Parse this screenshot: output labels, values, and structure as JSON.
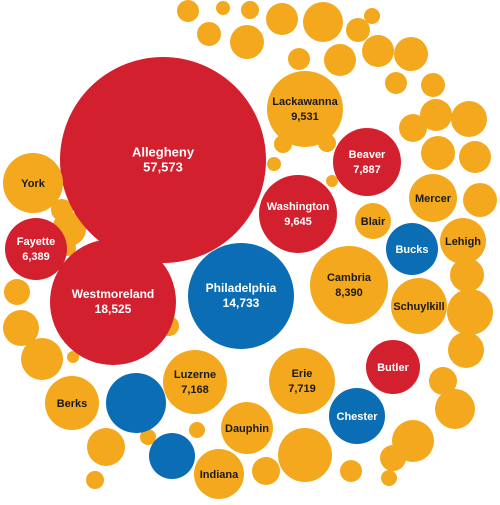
{
  "chart_data": {
    "type": "bubble",
    "title": "",
    "colors": {
      "red": "#d3202f",
      "blue": "#0b6db3",
      "orange": "#f4a81d"
    },
    "bubbles": [
      {
        "name": "Allegheny",
        "value": "57,573",
        "color": "red"
      },
      {
        "name": "Westmoreland",
        "value": "18,525",
        "color": "red"
      },
      {
        "name": "Philadelphia",
        "value": "14,733",
        "color": "blue"
      },
      {
        "name": "Washington",
        "value": "9,645",
        "color": "red"
      },
      {
        "name": "Lackawanna",
        "value": "9,531",
        "color": "orange"
      },
      {
        "name": "Cambria",
        "value": "8,390",
        "color": "orange"
      },
      {
        "name": "Beaver",
        "value": "7,887",
        "color": "red"
      },
      {
        "name": "Erie",
        "value": "7,719",
        "color": "orange"
      },
      {
        "name": "Luzerne",
        "value": "7,168",
        "color": "orange"
      },
      {
        "name": "Fayette",
        "value": "6,389",
        "color": "red"
      },
      {
        "name": "York",
        "value": "",
        "color": "orange"
      },
      {
        "name": "Blair",
        "value": "",
        "color": "orange"
      },
      {
        "name": "Mercer",
        "value": "",
        "color": "orange"
      },
      {
        "name": "Bucks",
        "value": "",
        "color": "blue"
      },
      {
        "name": "Lehigh",
        "value": "",
        "color": "orange"
      },
      {
        "name": "Schuylkill",
        "value": "",
        "color": "orange"
      },
      {
        "name": "Butler",
        "value": "",
        "color": "red"
      },
      {
        "name": "Berks",
        "value": "",
        "color": "orange"
      },
      {
        "name": "Chester",
        "value": "",
        "color": "blue"
      },
      {
        "name": "Dauphin",
        "value": "",
        "color": "orange"
      },
      {
        "name": "Indiana",
        "value": "",
        "color": "orange"
      }
    ],
    "unlabeled_bubbles": [
      "orange",
      "orange",
      "orange",
      "orange",
      "orange",
      "orange",
      "orange",
      "orange",
      "orange",
      "orange",
      "orange",
      "orange",
      "orange",
      "orange",
      "orange",
      "orange",
      "orange",
      "orange",
      "orange",
      "orange",
      "orange",
      "orange",
      "orange",
      "orange",
      "orange",
      "orange",
      "orange",
      "orange",
      "orange",
      "orange",
      "orange",
      "orange",
      "orange",
      "orange",
      "orange",
      "orange",
      "orange",
      "orange",
      "orange",
      "orange",
      "orange",
      "orange",
      "orange",
      "orange",
      "orange",
      "orange",
      "orange",
      "orange",
      "orange",
      "orange",
      "orange",
      "blue",
      "blue"
    ]
  }
}
